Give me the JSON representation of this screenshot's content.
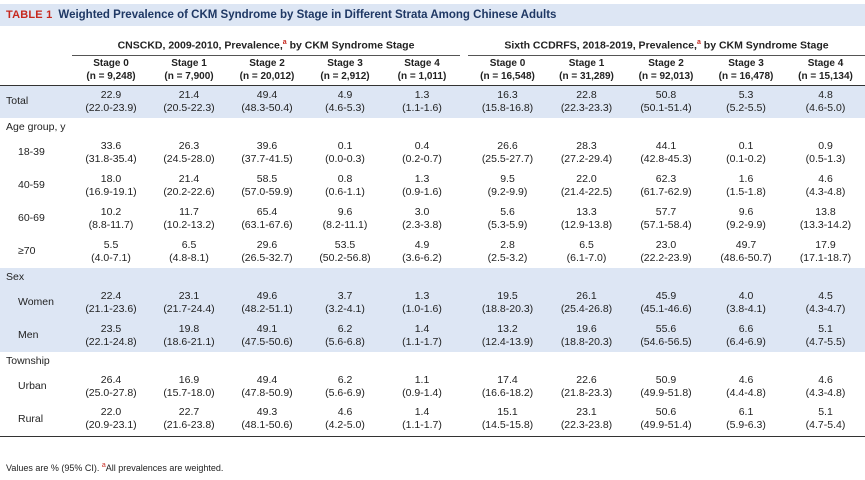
{
  "title": {
    "label": "TABLE 1",
    "text": "Weighted Prevalence of CKM Syndrome by Stage in Different Strata Among Chinese Adults"
  },
  "groups": {
    "left": {
      "prefix": "CNSCKD, 2009-2010, Prevalence,",
      "mark": "a",
      "suffix": " by CKM Syndrome Stage"
    },
    "right": {
      "prefix": "Sixth CCDRFS, 2018-2019, Prevalence,",
      "mark": "a",
      "suffix": " by CKM Syndrome Stage"
    }
  },
  "columns": [
    {
      "stage": "Stage 0",
      "n": "(n = 9,248)"
    },
    {
      "stage": "Stage 1",
      "n": "(n = 7,900)"
    },
    {
      "stage": "Stage 2",
      "n": "(n = 20,012)"
    },
    {
      "stage": "Stage 3",
      "n": "(n = 2,912)"
    },
    {
      "stage": "Stage 4",
      "n": "(n = 1,011)"
    },
    {
      "stage": "Stage 0",
      "n": "(n = 16,548)"
    },
    {
      "stage": "Stage 1",
      "n": "(n = 31,289)"
    },
    {
      "stage": "Stage 2",
      "n": "(n = 92,013)"
    },
    {
      "stage": "Stage 3",
      "n": "(n = 16,478)"
    },
    {
      "stage": "Stage 4",
      "n": "(n = 15,134)"
    }
  ],
  "rows": {
    "total": {
      "label": "Total",
      "cells": [
        [
          "22.9",
          "(22.0-23.9)"
        ],
        [
          "21.4",
          "(20.5-22.3)"
        ],
        [
          "49.4",
          "(48.3-50.4)"
        ],
        [
          "4.9",
          "(4.6-5.3)"
        ],
        [
          "1.3",
          "(1.1-1.6)"
        ],
        [
          "16.3",
          "(15.8-16.8)"
        ],
        [
          "22.8",
          "(22.3-23.3)"
        ],
        [
          "50.8",
          "(50.1-51.4)"
        ],
        [
          "5.3",
          "(5.2-5.5)"
        ],
        [
          "4.8",
          "(4.6-5.0)"
        ]
      ]
    },
    "age_header": "Age group, y",
    "age_18_39": {
      "label": "18-39",
      "cells": [
        [
          "33.6",
          "(31.8-35.4)"
        ],
        [
          "26.3",
          "(24.5-28.0)"
        ],
        [
          "39.6",
          "(37.7-41.5)"
        ],
        [
          "0.1",
          "(0.0-0.3)"
        ],
        [
          "0.4",
          "(0.2-0.7)"
        ],
        [
          "26.6",
          "(25.5-27.7)"
        ],
        [
          "28.3",
          "(27.2-29.4)"
        ],
        [
          "44.1",
          "(42.8-45.3)"
        ],
        [
          "0.1",
          "(0.1-0.2)"
        ],
        [
          "0.9",
          "(0.5-1.3)"
        ]
      ]
    },
    "age_40_59": {
      "label": "40-59",
      "cells": [
        [
          "18.0",
          "(16.9-19.1)"
        ],
        [
          "21.4",
          "(20.2-22.6)"
        ],
        [
          "58.5",
          "(57.0-59.9)"
        ],
        [
          "0.8",
          "(0.6-1.1)"
        ],
        [
          "1.3",
          "(0.9-1.6)"
        ],
        [
          "9.5",
          "(9.2-9.9)"
        ],
        [
          "22.0",
          "(21.4-22.5)"
        ],
        [
          "62.3",
          "(61.7-62.9)"
        ],
        [
          "1.6",
          "(1.5-1.8)"
        ],
        [
          "4.6",
          "(4.3-4.8)"
        ]
      ]
    },
    "age_60_69": {
      "label": "60-69",
      "cells": [
        [
          "10.2",
          "(8.8-11.7)"
        ],
        [
          "11.7",
          "(10.2-13.2)"
        ],
        [
          "65.4",
          "(63.1-67.6)"
        ],
        [
          "9.6",
          "(8.2-11.1)"
        ],
        [
          "3.0",
          "(2.3-3.8)"
        ],
        [
          "5.6",
          "(5.3-5.9)"
        ],
        [
          "13.3",
          "(12.9-13.8)"
        ],
        [
          "57.7",
          "(57.1-58.4)"
        ],
        [
          "9.6",
          "(9.2-9.9)"
        ],
        [
          "13.8",
          "(13.3-14.2)"
        ]
      ]
    },
    "age_70": {
      "label": "≥70",
      "cells": [
        [
          "5.5",
          "(4.0-7.1)"
        ],
        [
          "6.5",
          "(4.8-8.1)"
        ],
        [
          "29.6",
          "(26.5-32.7)"
        ],
        [
          "53.5",
          "(50.2-56.8)"
        ],
        [
          "4.9",
          "(3.6-6.2)"
        ],
        [
          "2.8",
          "(2.5-3.2)"
        ],
        [
          "6.5",
          "(6.1-7.0)"
        ],
        [
          "23.0",
          "(22.2-23.9)"
        ],
        [
          "49.7",
          "(48.6-50.7)"
        ],
        [
          "17.9",
          "(17.1-18.7)"
        ]
      ]
    },
    "sex_header": "Sex",
    "women": {
      "label": "Women",
      "cells": [
        [
          "22.4",
          "(21.1-23.6)"
        ],
        [
          "23.1",
          "(21.7-24.4)"
        ],
        [
          "49.6",
          "(48.2-51.1)"
        ],
        [
          "3.7",
          "(3.2-4.1)"
        ],
        [
          "1.3",
          "(1.0-1.6)"
        ],
        [
          "19.5",
          "(18.8-20.3)"
        ],
        [
          "26.1",
          "(25.4-26.8)"
        ],
        [
          "45.9",
          "(45.1-46.6)"
        ],
        [
          "4.0",
          "(3.8-4.1)"
        ],
        [
          "4.5",
          "(4.3-4.7)"
        ]
      ]
    },
    "men": {
      "label": "Men",
      "cells": [
        [
          "23.5",
          "(22.1-24.8)"
        ],
        [
          "19.8",
          "(18.6-21.1)"
        ],
        [
          "49.1",
          "(47.5-50.6)"
        ],
        [
          "6.2",
          "(5.6-6.8)"
        ],
        [
          "1.4",
          "(1.1-1.7)"
        ],
        [
          "13.2",
          "(12.4-13.9)"
        ],
        [
          "19.6",
          "(18.8-20.3)"
        ],
        [
          "55.6",
          "(54.6-56.5)"
        ],
        [
          "6.6",
          "(6.4-6.9)"
        ],
        [
          "5.1",
          "(4.7-5.5)"
        ]
      ]
    },
    "township_header": "Township",
    "urban": {
      "label": "Urban",
      "cells": [
        [
          "26.4",
          "(25.0-27.8)"
        ],
        [
          "16.9",
          "(15.7-18.0)"
        ],
        [
          "49.4",
          "(47.8-50.9)"
        ],
        [
          "6.2",
          "(5.6-6.9)"
        ],
        [
          "1.1",
          "(0.9-1.4)"
        ],
        [
          "17.4",
          "(16.6-18.2)"
        ],
        [
          "22.6",
          "(21.8-23.3)"
        ],
        [
          "50.9",
          "(49.9-51.8)"
        ],
        [
          "4.6",
          "(4.4-4.8)"
        ],
        [
          "4.6",
          "(4.3-4.8)"
        ]
      ]
    },
    "rural": {
      "label": "Rural",
      "cells": [
        [
          "22.0",
          "(20.9-23.1)"
        ],
        [
          "22.7",
          "(21.6-23.8)"
        ],
        [
          "49.3",
          "(48.1-50.6)"
        ],
        [
          "4.6",
          "(4.2-5.0)"
        ],
        [
          "1.4",
          "(1.1-1.7)"
        ],
        [
          "15.1",
          "(14.5-15.8)"
        ],
        [
          "23.1",
          "(22.3-23.8)"
        ],
        [
          "50.6",
          "(49.9-51.4)"
        ],
        [
          "6.1",
          "(5.9-6.3)"
        ],
        [
          "5.1",
          "(4.7-5.4)"
        ]
      ]
    }
  },
  "footnote": {
    "text1": "Values are % (95% CI). ",
    "mark": "a",
    "text2": "All prevalences are weighted."
  },
  "colors": {
    "title_bg": "#dde6f4",
    "title_label": "#c6281e",
    "title_text": "#1f3864",
    "shade": "#dde6f4"
  }
}
